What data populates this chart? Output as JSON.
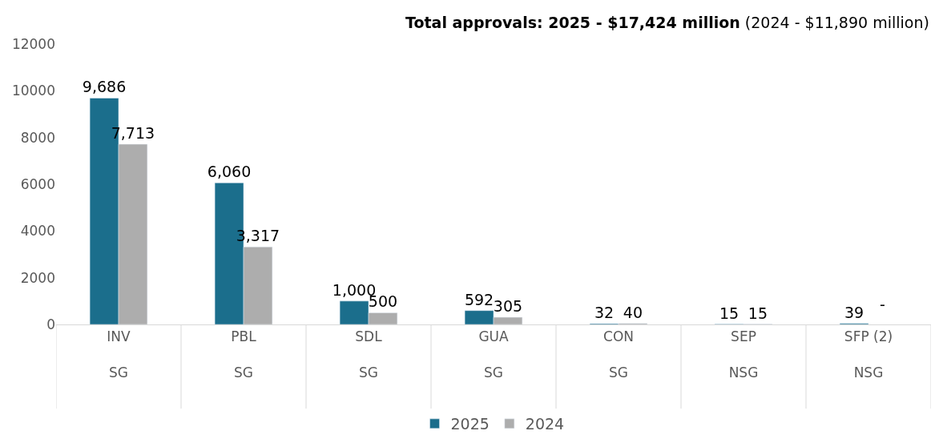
{
  "chart_data": {
    "type": "bar",
    "title": "Total approvals: 2025 - $17,424 million",
    "subtitle": "(2024 - $11,890 million)",
    "categories": [
      "INV\nSG",
      "PBL\nSG",
      "SDL\nSG",
      "GUA\nSG",
      "CON\nSG",
      "SEP\nNSG",
      "SFP (2)\nNSG"
    ],
    "series": [
      {
        "name": "2025",
        "color": "#1b6e8c",
        "values": [
          9686,
          6060,
          1000,
          592,
          32,
          15,
          39
        ],
        "value_labels": [
          "9,686",
          "6,060",
          "1,000",
          "592",
          "32",
          "15",
          "39"
        ]
      },
      {
        "name": "2024",
        "color": "#adadad",
        "values": [
          7713,
          3317,
          500,
          305,
          40,
          15,
          null
        ],
        "value_labels": [
          "7,713",
          "3,317",
          "500",
          "305",
          "40",
          "15",
          "-"
        ]
      }
    ],
    "ylim": [
      0,
      12000
    ],
    "yticks": [
      0,
      2000,
      4000,
      6000,
      8000,
      10000,
      12000
    ],
    "legend": "bottom"
  }
}
